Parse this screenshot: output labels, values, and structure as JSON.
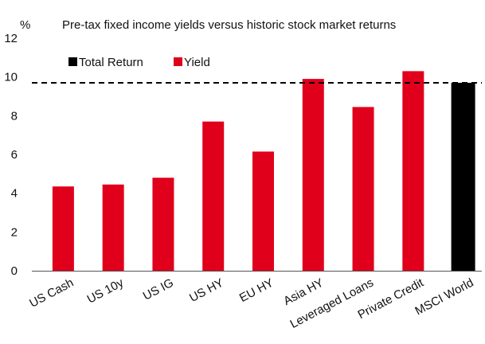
{
  "chart_data": {
    "type": "bar",
    "title": "Pre-tax fixed income yields versus historic stock market returns",
    "ylabel": "%",
    "xlabel": "",
    "ylim": [
      0,
      12
    ],
    "yticks": [
      0,
      2,
      4,
      6,
      8,
      10,
      12
    ],
    "categories": [
      "US Cash",
      "US 10y",
      "US IG",
      "US HY",
      "EU HY",
      "Asia HY",
      "Leveraged Loans",
      "Private Credit",
      "MSCI World"
    ],
    "series": [
      {
        "name": "Yield",
        "color": "#e0001b",
        "values": [
          4.35,
          4.45,
          4.8,
          7.7,
          6.15,
          9.9,
          8.45,
          10.3,
          null
        ]
      },
      {
        "name": "Total Return",
        "color": "#000000",
        "values": [
          null,
          null,
          null,
          null,
          null,
          null,
          null,
          null,
          9.7
        ]
      }
    ],
    "reference_line": {
      "value": 9.7,
      "style": "dashed",
      "color": "#000000"
    },
    "legend": {
      "placement": "top-left",
      "entries": [
        "Total Return",
        "Yield"
      ]
    },
    "grid": false
  }
}
